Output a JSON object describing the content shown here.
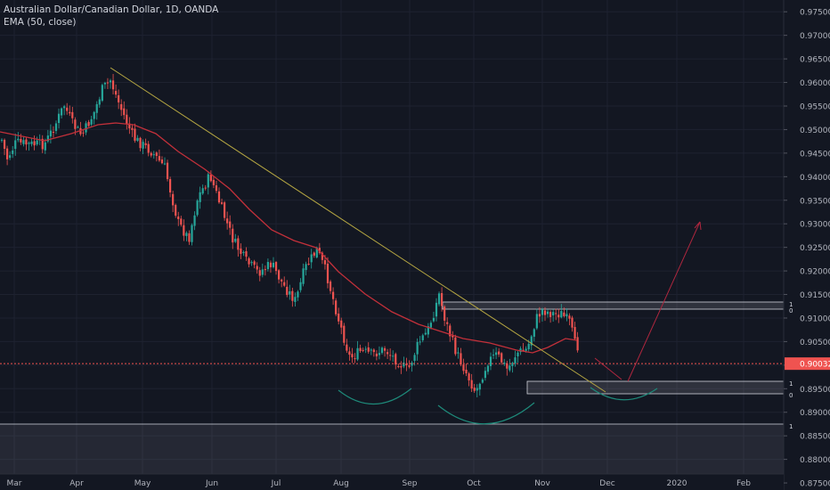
{
  "legend": {
    "symbol_title": "Australian Dollar/Canadian Dollar, 1D, OANDA",
    "indicator": "EMA (50, close)"
  },
  "chart_data": {
    "type": "candlestick",
    "x_ticks": [
      "Mar",
      "Apr",
      "May",
      "Jun",
      "Jul",
      "Aug",
      "Sep",
      "Oct",
      "Nov",
      "Dec",
      "2020",
      "Feb"
    ],
    "y_ticks": [
      "0.97500",
      "0.97000",
      "0.96500",
      "0.96000",
      "0.95500",
      "0.95000",
      "0.94500",
      "0.94000",
      "0.93500",
      "0.93000",
      "0.92500",
      "0.92000",
      "0.91500",
      "0.91000",
      "0.90500",
      "0.90000",
      "0.89500",
      "0.89000",
      "0.88500",
      "0.88000",
      "0.87500"
    ],
    "ylim": [
      0.8735,
      0.9775
    ],
    "last_price": "0.90032",
    "zone_labels": {
      "upper_top": "1",
      "upper_bottom": "0",
      "lower_top": "1",
      "lower_bottom": "0",
      "bottom_band": "1"
    },
    "colors": {
      "up": "#26a69a",
      "down": "#ef5350",
      "ema": "#c2303a",
      "trendline": "#b5a642",
      "projection": "#b0273f",
      "arc": "#1e8a7a",
      "price_line": "#ef5350",
      "zone": "#9598a1",
      "background": "#131722",
      "grid": "#1e2230",
      "axis_text": "#b2b5be"
    }
  }
}
